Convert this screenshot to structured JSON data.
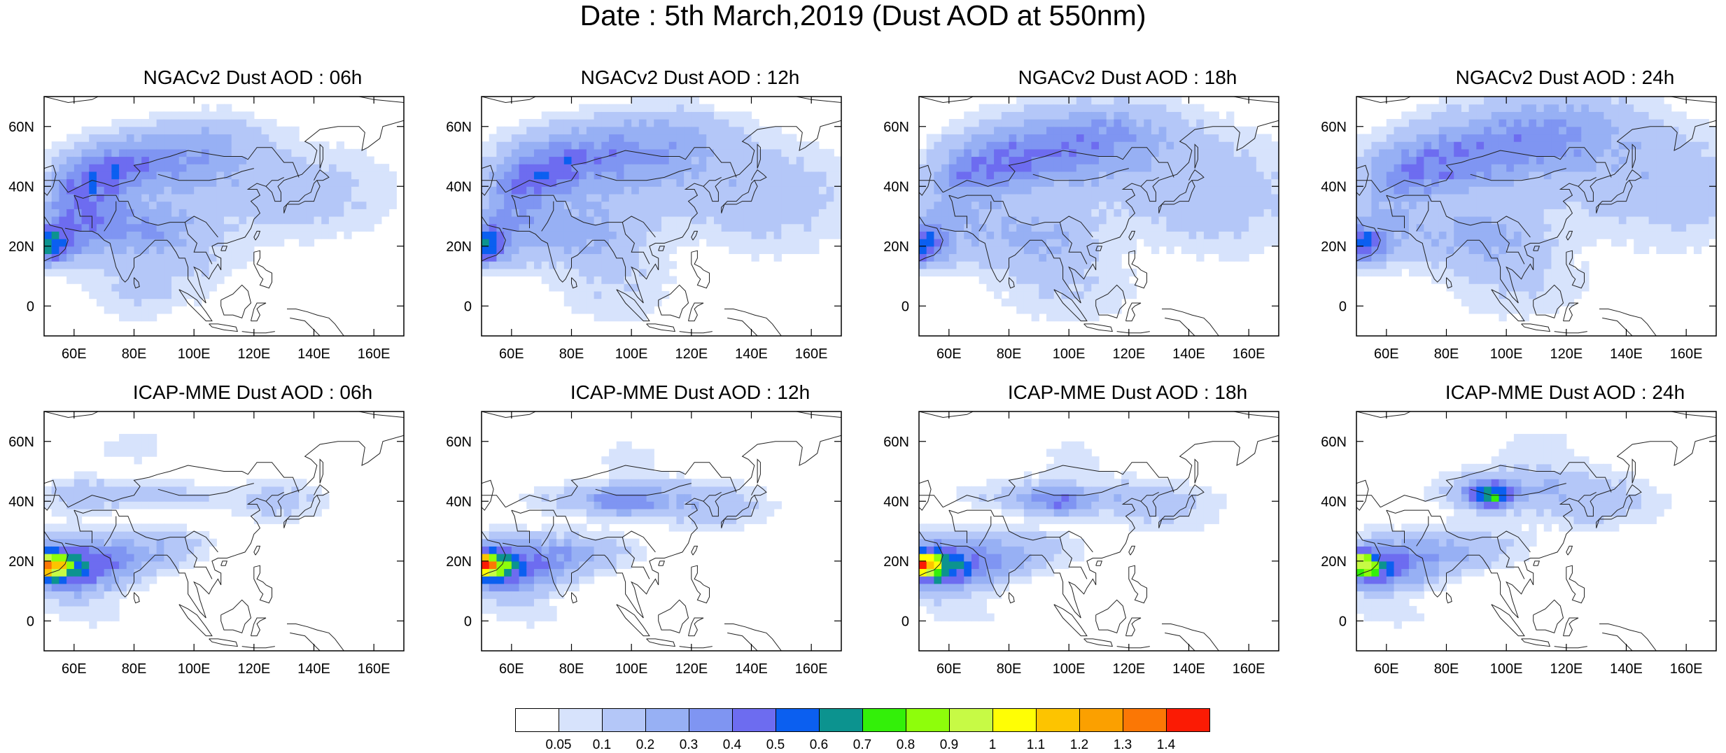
{
  "title": "Date : 5th March,2019 (Dust AOD at 550nm)",
  "colors": {
    "levels": [
      "#ffffff",
      "#d7e3fc",
      "#b4c7f8",
      "#97b0f4",
      "#7f95f2",
      "#6d6cf0",
      "#0b5ff0",
      "#0c938f",
      "#33f009",
      "#8efe0b",
      "#c7fa45",
      "#fffe05",
      "#fdc400",
      "#fba000",
      "#fb7705",
      "#fb1b04"
    ]
  },
  "panels": [
    {
      "title": "NGACv2 Dust AOD : 06h"
    },
    {
      "title": "NGACv2 Dust AOD : 12h"
    },
    {
      "title": "NGACv2 Dust AOD : 18h"
    },
    {
      "title": "NGACv2 Dust AOD : 24h"
    },
    {
      "title": "ICAP-MME Dust AOD : 06h"
    },
    {
      "title": "ICAP-MME Dust AOD : 12h"
    },
    {
      "title": "ICAP-MME Dust AOD : 18h"
    },
    {
      "title": "ICAP-MME Dust AOD : 24h"
    }
  ],
  "axes": {
    "lon_range": [
      50,
      170
    ],
    "lat_range": [
      -10,
      70
    ],
    "lon_ticks": [
      60,
      80,
      100,
      120,
      140,
      160
    ],
    "lon_labels": [
      "60E",
      "80E",
      "100E",
      "120E",
      "140E",
      "160E"
    ],
    "lat_ticks": [
      0,
      20,
      40,
      60
    ],
    "lat_labels": [
      "0",
      "20N",
      "40N",
      "60N"
    ]
  },
  "colorbar": {
    "labels": [
      "0.05",
      "0.1",
      "0.2",
      "0.3",
      "0.4",
      "0.5",
      "0.6",
      "0.7",
      "0.8",
      "0.9",
      "1",
      "1.1",
      "1.2",
      "1.3",
      "1.4"
    ]
  }
}
